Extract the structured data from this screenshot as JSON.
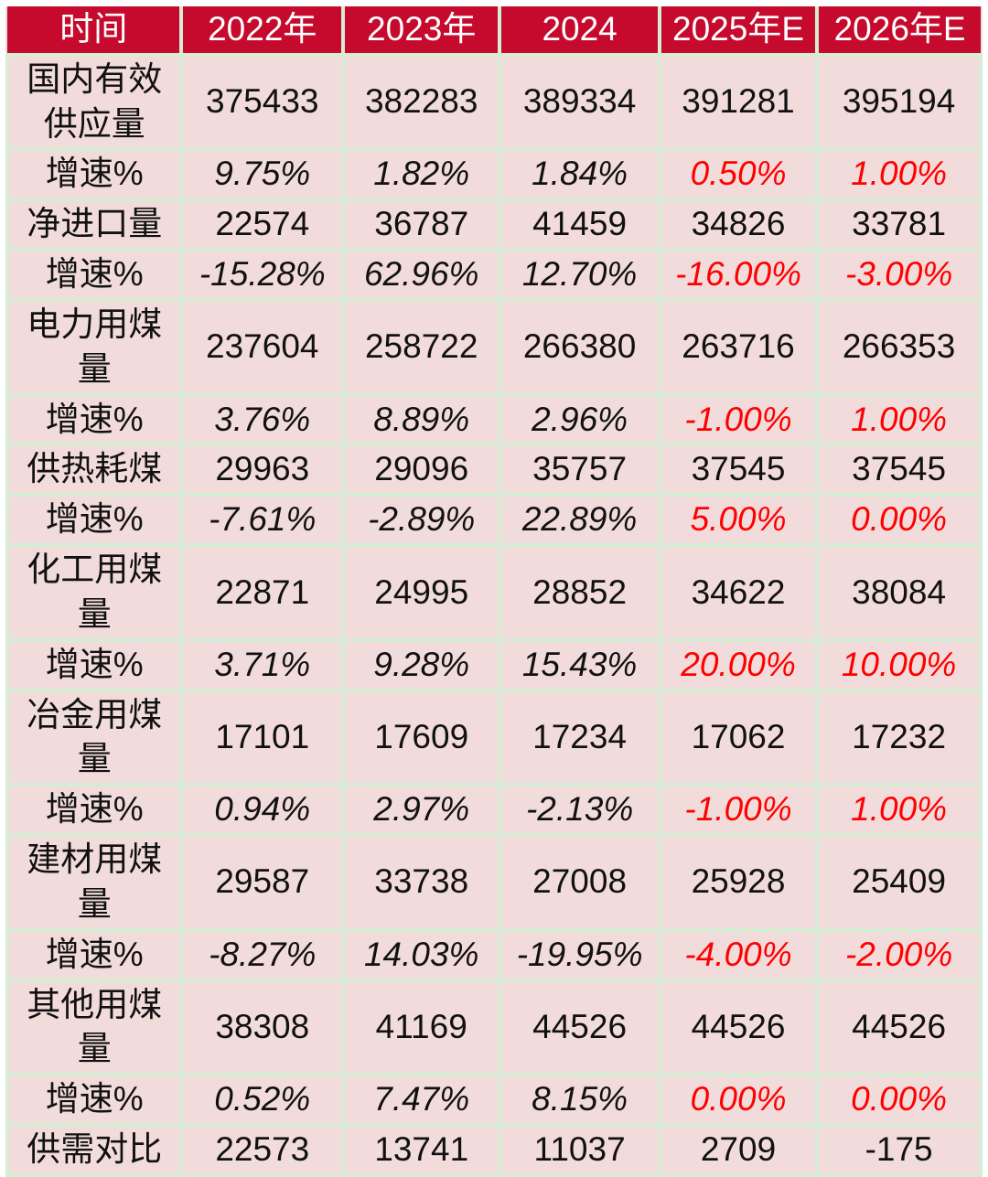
{
  "table": {
    "header": [
      "时间",
      "2022年",
      "2023年",
      "2024",
      "2025年E",
      "2026年E"
    ],
    "rows": [
      {
        "label": "国内有效供应量",
        "growth": false,
        "values": [
          "375433",
          "382283",
          "389334",
          "391281",
          "395194"
        ]
      },
      {
        "label": "增速%",
        "growth": true,
        "values": [
          "9.75%",
          "1.82%",
          "1.84%",
          "0.50%",
          "1.00%"
        ]
      },
      {
        "label": "净进口量",
        "growth": false,
        "values": [
          "22574",
          "36787",
          "41459",
          "34826",
          "33781"
        ]
      },
      {
        "label": "增速%",
        "growth": true,
        "values": [
          "-15.28%",
          "62.96%",
          "12.70%",
          "-16.00%",
          "-3.00%"
        ]
      },
      {
        "label": "电力用煤量",
        "growth": false,
        "values": [
          "237604",
          "258722",
          "266380",
          "263716",
          "266353"
        ]
      },
      {
        "label": "增速%",
        "growth": true,
        "values": [
          "3.76%",
          "8.89%",
          "2.96%",
          "-1.00%",
          "1.00%"
        ]
      },
      {
        "label": "供热耗煤",
        "growth": false,
        "values": [
          "29963",
          "29096",
          "35757",
          "37545",
          "37545"
        ]
      },
      {
        "label": "增速%",
        "growth": true,
        "values": [
          "-7.61%",
          "-2.89%",
          "22.89%",
          "5.00%",
          "0.00%"
        ]
      },
      {
        "label": "化工用煤量",
        "growth": false,
        "values": [
          "22871",
          "24995",
          "28852",
          "34622",
          "38084"
        ]
      },
      {
        "label": "增速%",
        "growth": true,
        "values": [
          "3.71%",
          "9.28%",
          "15.43%",
          "20.00%",
          "10.00%"
        ]
      },
      {
        "label": "冶金用煤量",
        "growth": false,
        "values": [
          "17101",
          "17609",
          "17234",
          "17062",
          "17232"
        ]
      },
      {
        "label": "增速%",
        "growth": true,
        "values": [
          "0.94%",
          "2.97%",
          "-2.13%",
          "-1.00%",
          "1.00%"
        ]
      },
      {
        "label": "建材用煤量",
        "growth": false,
        "values": [
          "29587",
          "33738",
          "27008",
          "25928",
          "25409"
        ]
      },
      {
        "label": "增速%",
        "growth": true,
        "values": [
          "-8.27%",
          "14.03%",
          "-19.95%",
          "-4.00%",
          "-2.00%"
        ]
      },
      {
        "label": "其他用煤量",
        "growth": false,
        "values": [
          "38308",
          "41169",
          "44526",
          "44526",
          "44526"
        ]
      },
      {
        "label": "增速%",
        "growth": true,
        "values": [
          "0.52%",
          "7.47%",
          "8.15%",
          "0.00%",
          "0.00%"
        ]
      },
      {
        "label": "供需对比",
        "growth": false,
        "values": [
          "22573",
          "13741",
          "11037",
          "2709",
          "-175"
        ]
      }
    ]
  },
  "colors": {
    "header_bg": "#c60a2e",
    "header_text": "#ffffff",
    "cell_bg": "#f2dcdb",
    "border_green": "#d6ecd4",
    "text": "#111111",
    "forecast_red": "#ff0000"
  },
  "chart_data": {
    "type": "table",
    "title": "",
    "categories": [
      "2022年",
      "2023年",
      "2024",
      "2025年E",
      "2026年E"
    ],
    "series": [
      {
        "name": "国内有效供应量",
        "values": [
          375433,
          382283,
          389334,
          391281,
          395194
        ]
      },
      {
        "name": "国内有效供应量-增速%",
        "values": [
          9.75,
          1.82,
          1.84,
          0.5,
          1.0
        ]
      },
      {
        "name": "净进口量",
        "values": [
          22574,
          36787,
          41459,
          34826,
          33781
        ]
      },
      {
        "name": "净进口量-增速%",
        "values": [
          -15.28,
          62.96,
          12.7,
          -16.0,
          -3.0
        ]
      },
      {
        "name": "电力用煤量",
        "values": [
          237604,
          258722,
          266380,
          263716,
          266353
        ]
      },
      {
        "name": "电力用煤量-增速%",
        "values": [
          3.76,
          8.89,
          2.96,
          -1.0,
          1.0
        ]
      },
      {
        "name": "供热耗煤",
        "values": [
          29963,
          29096,
          35757,
          37545,
          37545
        ]
      },
      {
        "name": "供热耗煤-增速%",
        "values": [
          -7.61,
          -2.89,
          22.89,
          5.0,
          0.0
        ]
      },
      {
        "name": "化工用煤量",
        "values": [
          22871,
          24995,
          28852,
          34622,
          38084
        ]
      },
      {
        "name": "化工用煤量-增速%",
        "values": [
          3.71,
          9.28,
          15.43,
          20.0,
          10.0
        ]
      },
      {
        "name": "冶金用煤量",
        "values": [
          17101,
          17609,
          17234,
          17062,
          17232
        ]
      },
      {
        "name": "冶金用煤量-增速%",
        "values": [
          0.94,
          2.97,
          -2.13,
          -1.0,
          1.0
        ]
      },
      {
        "name": "建材用煤量",
        "values": [
          29587,
          33738,
          27008,
          25928,
          25409
        ]
      },
      {
        "name": "建材用煤量-增速%",
        "values": [
          -8.27,
          14.03,
          -19.95,
          -4.0,
          -2.0
        ]
      },
      {
        "name": "其他用煤量",
        "values": [
          38308,
          41169,
          44526,
          44526,
          44526
        ]
      },
      {
        "name": "其他用煤量-增速%",
        "values": [
          0.52,
          7.47,
          8.15,
          0.0,
          0.0
        ]
      },
      {
        "name": "供需对比",
        "values": [
          22573,
          13741,
          11037,
          2709,
          -175
        ]
      }
    ],
    "notes": "增速% rows italic; forecast columns (2025年E, 2026年E) of 增速% rows shown in red"
  }
}
